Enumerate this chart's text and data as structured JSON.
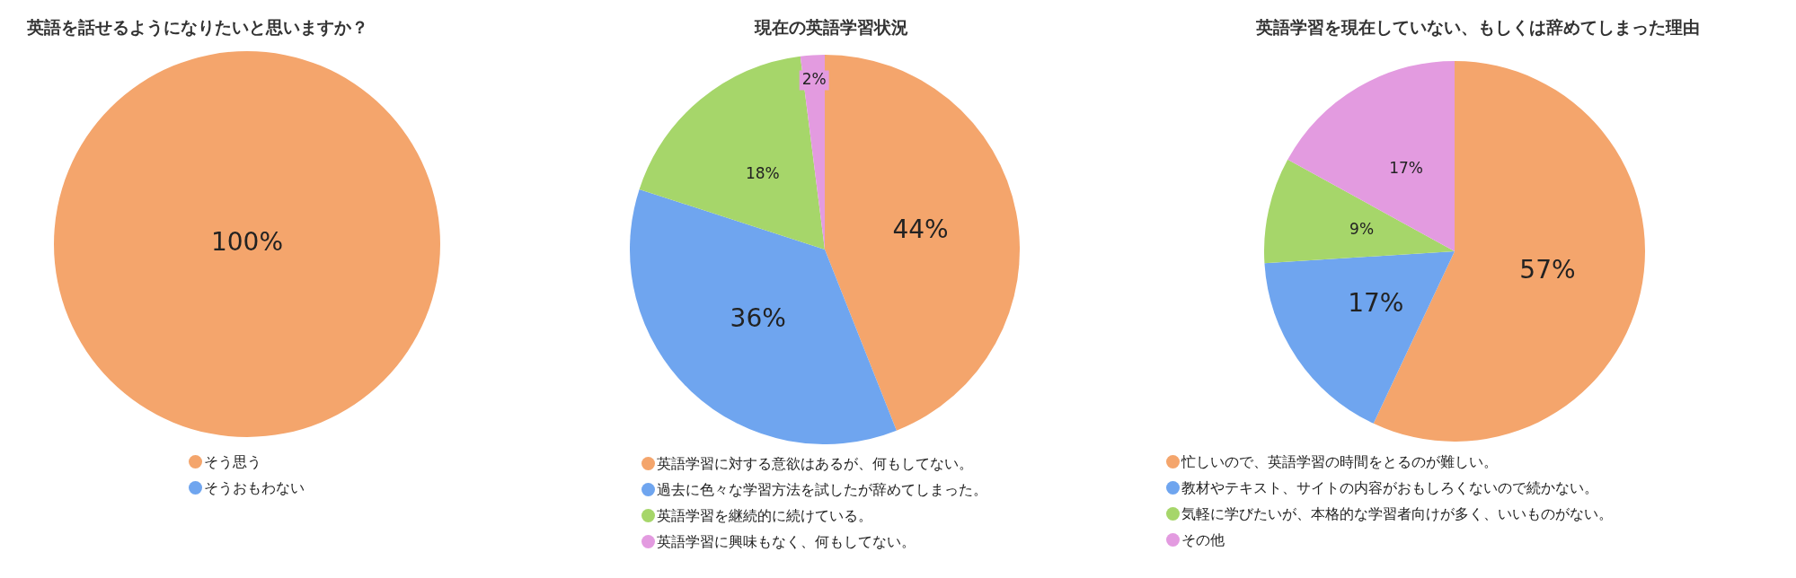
{
  "chart_data": [
    {
      "type": "pie",
      "title": "英語を話せるようになりたいと思いますか？",
      "categories": [
        "そう思う",
        "そうおもわない"
      ],
      "values": [
        100,
        0
      ],
      "colors": [
        "#f4a56c",
        "#6fa5ef"
      ],
      "value_labels": [
        "100%",
        null
      ],
      "legend": "bottom"
    },
    {
      "type": "pie",
      "title": "現在の英語学習状況",
      "categories": [
        "英語学習に対する意欲はあるが、何もしてない。",
        "過去に色々な学習方法を試したが辞めてしまった。",
        "英語学習を継続的に続けている。",
        "英語学習に興味もなく、何もしてない。"
      ],
      "values": [
        44,
        36,
        18,
        2
      ],
      "colors": [
        "#f4a56c",
        "#6fa5ef",
        "#a6d66a",
        "#e39be0"
      ],
      "value_labels": [
        "44%",
        "36%",
        "18%",
        "2%"
      ],
      "legend": "bottom"
    },
    {
      "type": "pie",
      "title": "英語学習を現在していない、もしくは辞めてしまった理由",
      "categories": [
        "忙しいので、英語学習の時間をとるのが難しい。",
        "教材やテキスト、サイトの内容がおもしろくないので続かない。",
        "気軽に学びたいが、本格的な学習者向けが多く、いいものがない。",
        "その他"
      ],
      "values": [
        57,
        17,
        9,
        17
      ],
      "colors": [
        "#f4a56c",
        "#6fa5ef",
        "#a6d66a",
        "#e39be0"
      ],
      "value_labels": [
        "57%",
        "17%",
        "9%",
        "17%"
      ],
      "legend": "bottom"
    }
  ]
}
